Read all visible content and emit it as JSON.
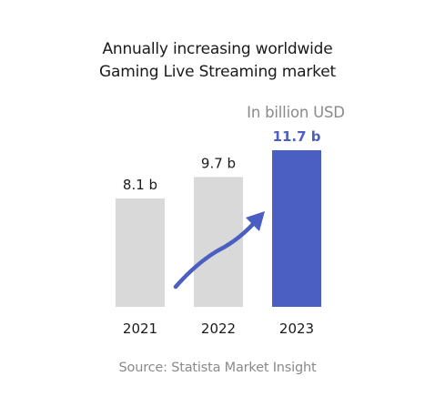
{
  "title": [
    "Annually increasing worldwide",
    "Gaming Live Streaming market"
  ],
  "unit": "In billion USD",
  "source": "Source: Statista Market Insight",
  "colors": {
    "bar": "#d9d9d9",
    "highlight": "#4a5fc1",
    "arrow": "#4a5fc1"
  },
  "chart_data": {
    "type": "bar",
    "title": "Annually increasing worldwide Gaming Live Streaming market",
    "ylabel": "In billion USD",
    "categories": [
      "2021",
      "2022",
      "2023"
    ],
    "values": [
      8.1,
      9.7,
      11.7
    ],
    "data_labels": [
      "8.1 b",
      "9.7 b",
      "11.7 b"
    ],
    "highlight_index": 2,
    "ylim": [
      0,
      11.7
    ],
    "grid": false,
    "annotation": "upward trend arrow"
  }
}
